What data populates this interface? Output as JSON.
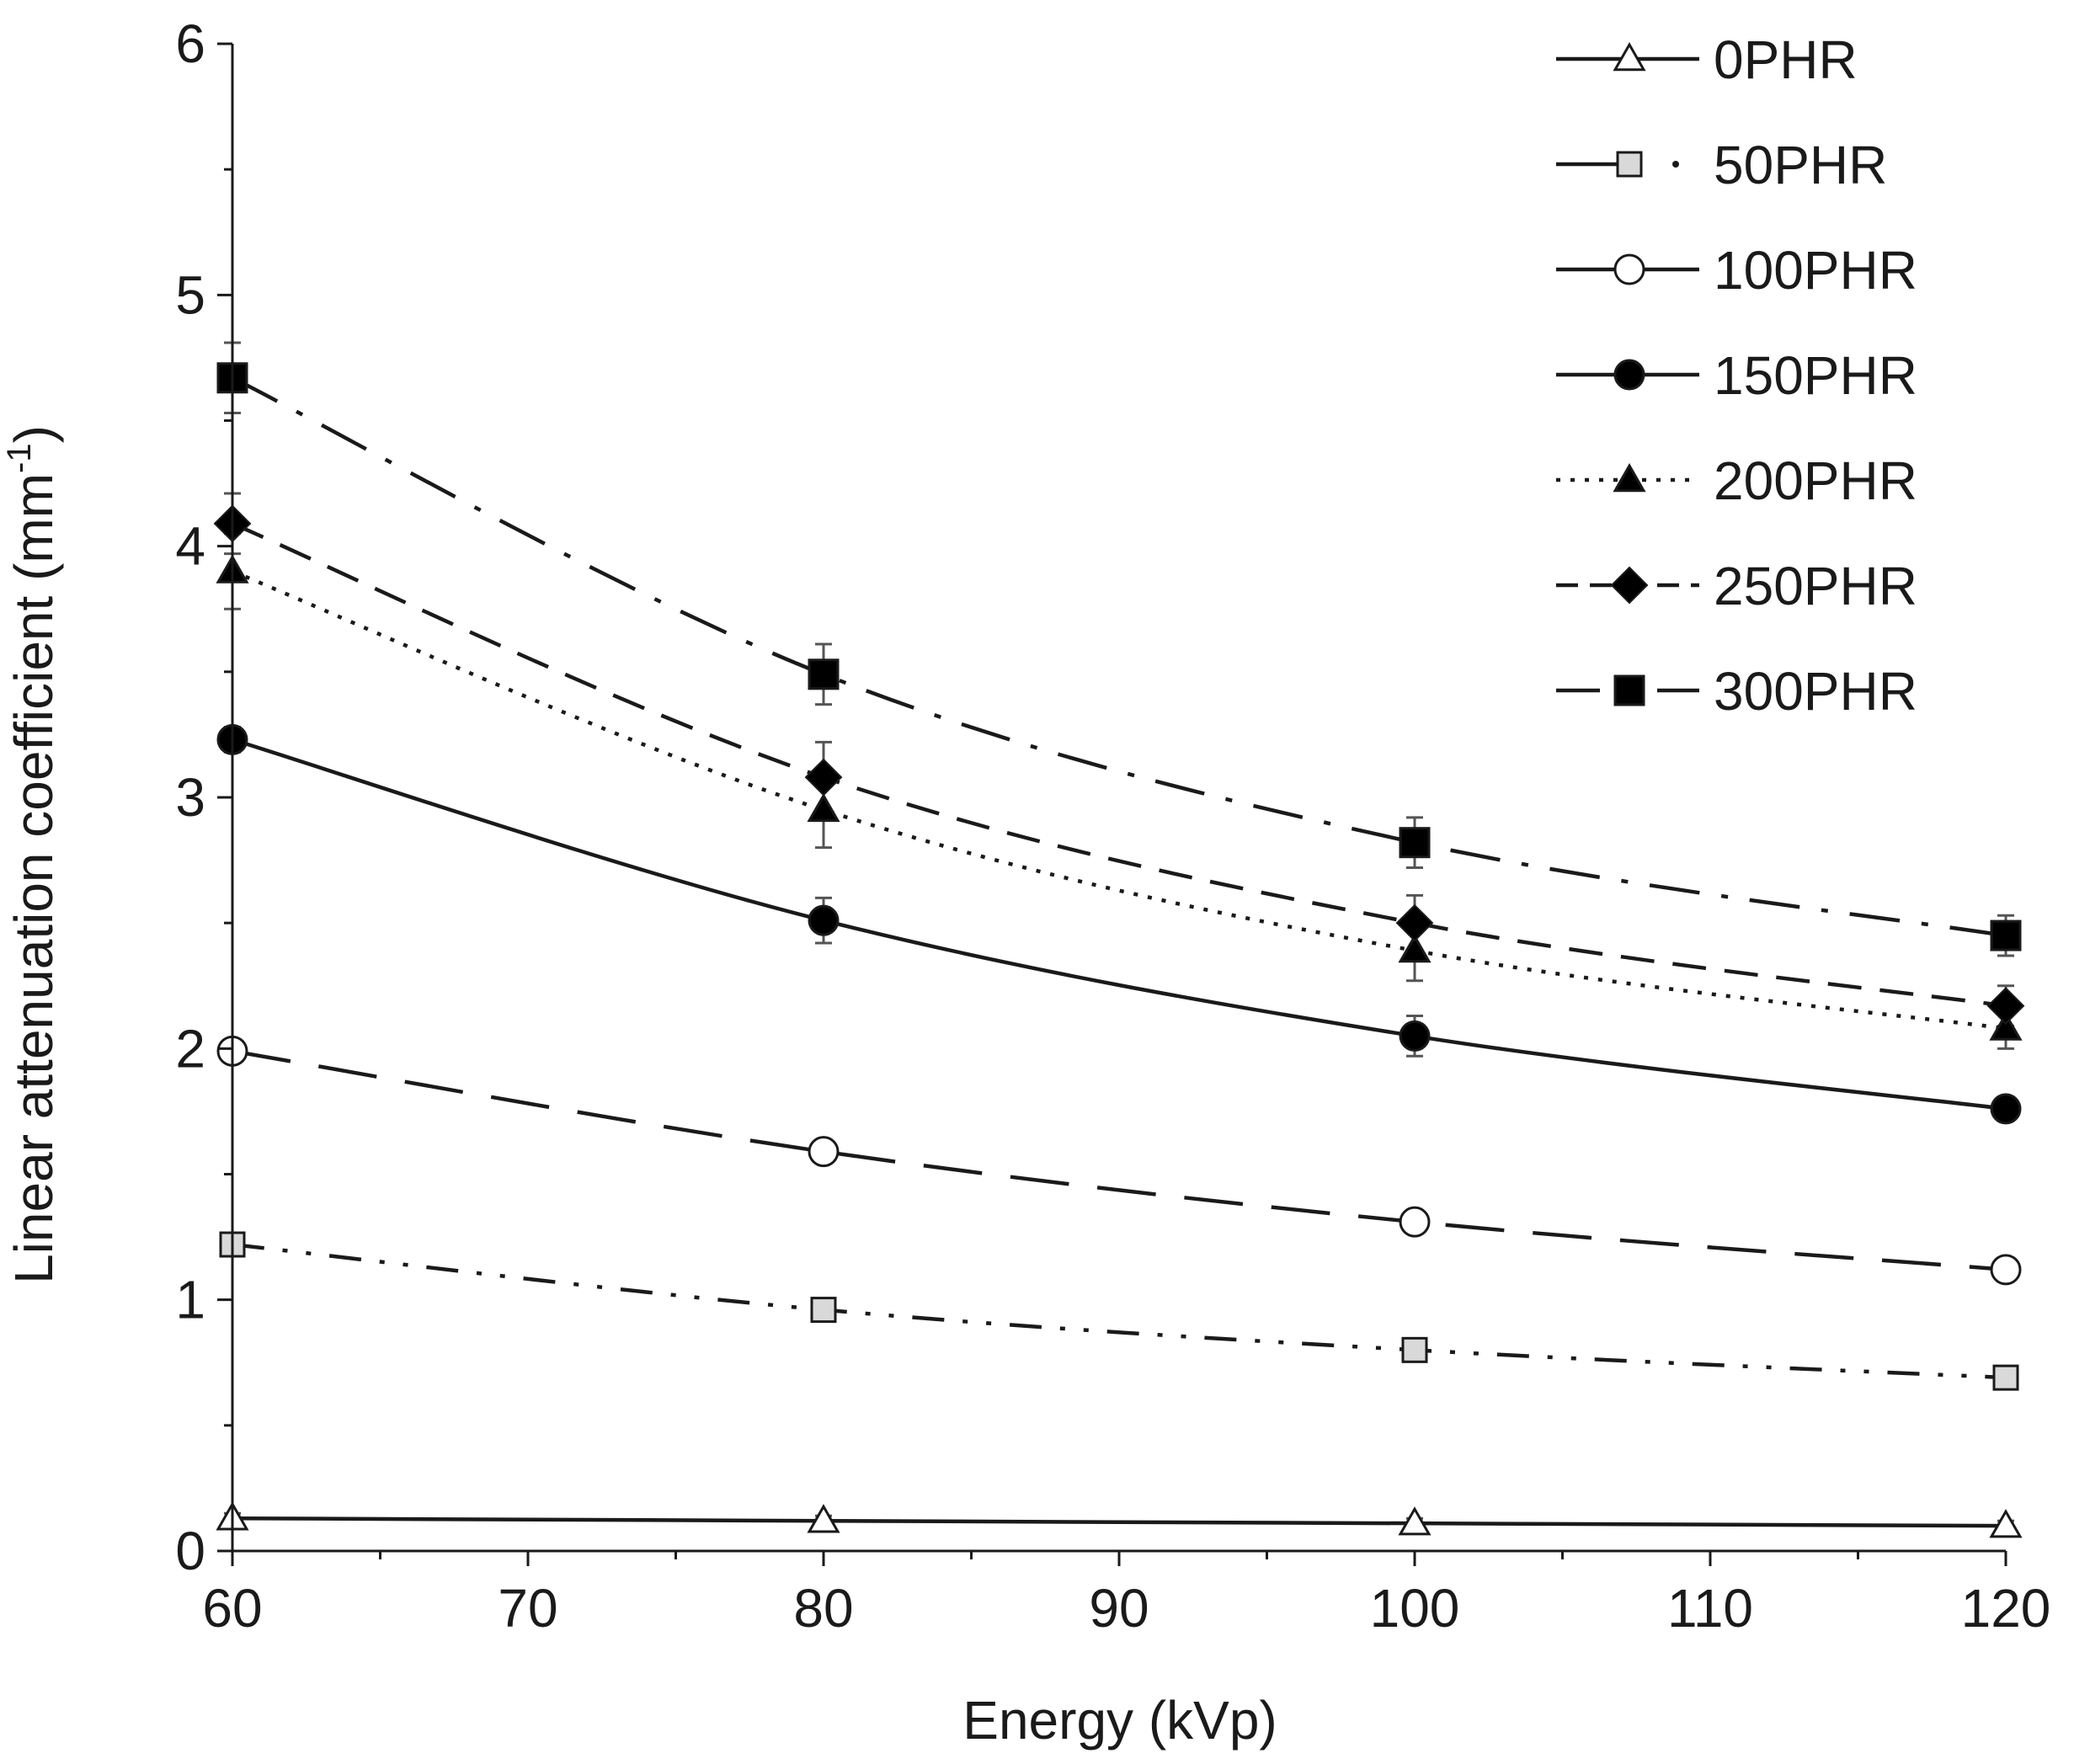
{
  "chart_data": {
    "type": "line",
    "title": "",
    "xlabel": "Energy (kVp)",
    "ylabel": {
      "main": "Linear attenuation coefficient (mm",
      "sup": "-1",
      "close": ")"
    },
    "xlim": [
      60,
      120
    ],
    "ylim": [
      0,
      6
    ],
    "xticks": [
      60,
      70,
      80,
      90,
      100,
      110,
      120
    ],
    "yticks": [
      0,
      1,
      2,
      3,
      4,
      5,
      6
    ],
    "x": [
      60,
      80,
      100,
      120
    ],
    "legend_position": "top-right",
    "series": [
      {
        "name": "0PHR",
        "values": [
          0.13,
          0.12,
          0.11,
          0.1
        ],
        "errors": [
          0.02,
          0.02,
          0.02,
          0.02
        ],
        "marker": "triangle-open",
        "line": "solid",
        "legend_line": "solid"
      },
      {
        "name": "50PHR",
        "values": [
          1.22,
          0.96,
          0.8,
          0.69
        ],
        "errors": [
          0.03,
          0.03,
          0.03,
          0.03
        ],
        "marker": "square-gray",
        "line": "dash-dot-dot",
        "legend_line": "solid-dot"
      },
      {
        "name": "100PHR",
        "values": [
          1.99,
          1.59,
          1.31,
          1.12
        ],
        "errors": [
          0.04,
          0.04,
          0.04,
          0.04
        ],
        "marker": "circle-open",
        "line": "long-dash",
        "legend_line": "solid"
      },
      {
        "name": "150PHR",
        "values": [
          3.23,
          2.51,
          2.05,
          1.76
        ],
        "errors": [
          0.05,
          0.09,
          0.08,
          0.04
        ],
        "marker": "circle-filled",
        "line": "solid",
        "legend_line": "solid"
      },
      {
        "name": "200PHR",
        "values": [
          3.9,
          2.95,
          2.39,
          2.08
        ],
        "errors": [
          0.15,
          0.15,
          0.12,
          0.08
        ],
        "marker": "triangle-filled",
        "line": "dotted",
        "legend_line": "dotted"
      },
      {
        "name": "250PHR",
        "values": [
          4.09,
          3.08,
          2.5,
          2.17
        ],
        "errors": [
          0.12,
          0.14,
          0.11,
          0.08
        ],
        "marker": "diamond-filled",
        "line": "dashed",
        "legend_line": "dashed"
      },
      {
        "name": "300PHR",
        "values": [
          4.67,
          3.49,
          2.82,
          2.45
        ],
        "errors": [
          0.14,
          0.12,
          0.1,
          0.08
        ],
        "marker": "square-filled",
        "line": "dash-dot",
        "legend_line": "long-dash"
      }
    ]
  }
}
